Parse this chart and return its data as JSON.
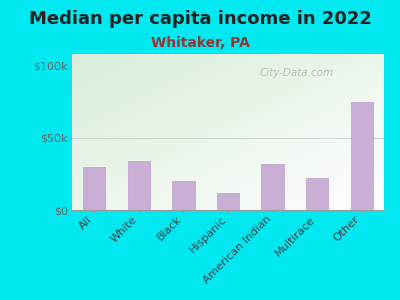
{
  "title": "Median per capita income in 2022",
  "subtitle": "Whitaker, PA",
  "categories": [
    "All",
    "White",
    "Black",
    "Hispanic",
    "American Indian",
    "Multirace",
    "Other"
  ],
  "values": [
    30000,
    34000,
    20000,
    12000,
    32000,
    22000,
    75000
  ],
  "bar_color": "#c9aed6",
  "bar_edge_color": "#b8a0cc",
  "background_color": "#00e8f0",
  "title_color": "#222222",
  "subtitle_color": "#993333",
  "ylabel_ticks": [
    "$0",
    "$50k",
    "$100k"
  ],
  "ytick_vals": [
    0,
    50000,
    100000
  ],
  "ylim": [
    0,
    108000
  ],
  "watermark": "City-Data.com",
  "title_fontsize": 13,
  "subtitle_fontsize": 10,
  "tick_fontsize": 8,
  "ytick_color": "#666666",
  "xtick_color": "#444444",
  "gradient_top": "#d8edd8",
  "gradient_bottom": "#f8fff8"
}
